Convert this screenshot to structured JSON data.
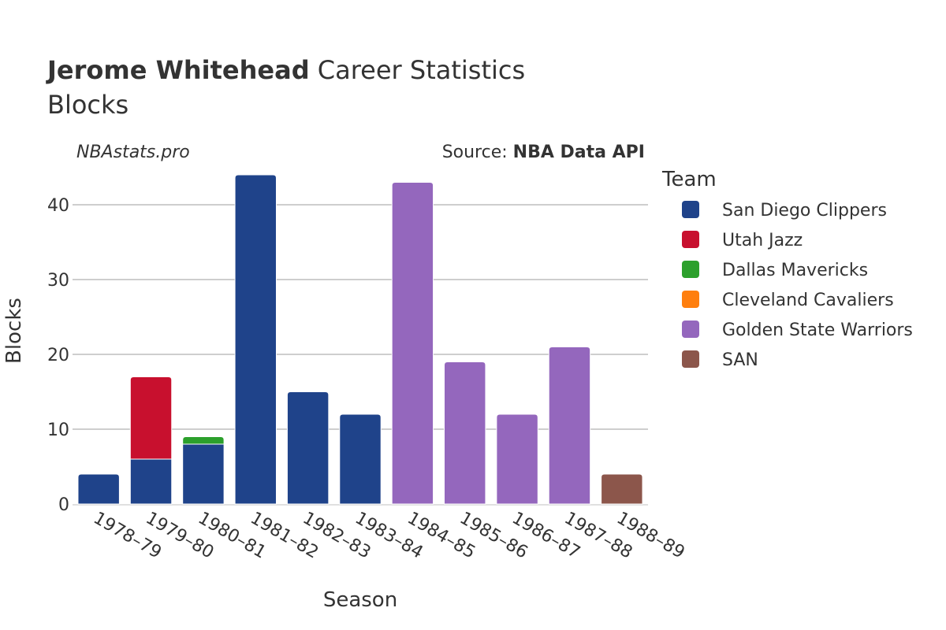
{
  "chart_data": {
    "type": "bar",
    "stacked": true,
    "title_player": "Jerome Whitehead",
    "title_rest": " Career Statistics",
    "subtitle": "Blocks",
    "watermark": "NBAstats.pro",
    "source_label": "Source: ",
    "source_name": "NBA Data API",
    "xlabel": "Season",
    "ylabel": "Blocks",
    "ylim": [
      0,
      44
    ],
    "yticks": [
      0,
      10,
      20,
      30,
      40
    ],
    "grid": true,
    "legend_title": "Team",
    "legend_placement": "right",
    "categories": [
      "1978–79",
      "1979–80",
      "1980–81",
      "1981–82",
      "1982–83",
      "1983–84",
      "1984–85",
      "1985–86",
      "1986–87",
      "1987–88",
      "1988–89"
    ],
    "series": [
      {
        "name": "San Diego Clippers",
        "color": "#1f438a",
        "values": [
          4,
          6,
          8,
          44,
          15,
          12,
          0,
          0,
          0,
          0,
          0
        ]
      },
      {
        "name": "Utah Jazz",
        "color": "#c8102e",
        "values": [
          0,
          11,
          0,
          0,
          0,
          0,
          0,
          0,
          0,
          0,
          0
        ]
      },
      {
        "name": "Dallas Mavericks",
        "color": "#2ca02c",
        "values": [
          0,
          0,
          1,
          0,
          0,
          0,
          0,
          0,
          0,
          0,
          0
        ]
      },
      {
        "name": "Cleveland Cavaliers",
        "color": "#ff7f0e",
        "values": [
          0,
          0,
          0,
          0,
          0,
          0,
          0,
          0,
          0,
          0,
          0
        ]
      },
      {
        "name": "Golden State Warriors",
        "color": "#9467bd",
        "values": [
          0,
          0,
          0,
          0,
          0,
          0,
          43,
          19,
          12,
          21,
          0
        ]
      },
      {
        "name": "SAN",
        "color": "#8c564b",
        "values": [
          0,
          0,
          0,
          0,
          0,
          0,
          0,
          0,
          0,
          0,
          4
        ]
      }
    ]
  }
}
